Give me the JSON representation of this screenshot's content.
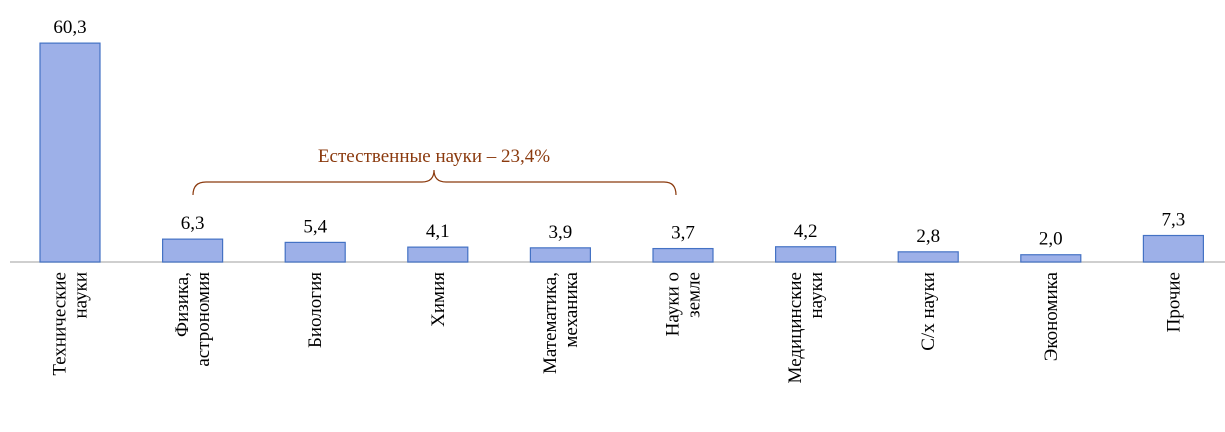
{
  "chart_data": {
    "type": "bar",
    "categories": [
      [
        "Технические",
        "науки"
      ],
      [
        "Физика,",
        "астрономия"
      ],
      [
        "Биология"
      ],
      [
        "Химия"
      ],
      [
        "Математика,",
        "механика"
      ],
      [
        "Науки о",
        "земле"
      ],
      [
        "Медицинские",
        "науки"
      ],
      [
        "С/х науки"
      ],
      [
        "Экономика"
      ],
      [
        "Прочие"
      ]
    ],
    "values": [
      60.3,
      6.3,
      5.4,
      4.1,
      3.9,
      3.7,
      4.2,
      2.8,
      2.0,
      7.3
    ],
    "value_labels": [
      "60,3",
      "6,3",
      "5,4",
      "4,1",
      "3,9",
      "3,7",
      "4,2",
      "2,8",
      "2,0",
      "7,3"
    ],
    "color": "#9db0e8",
    "annotation": "Естественные науки – 23,4%"
  }
}
